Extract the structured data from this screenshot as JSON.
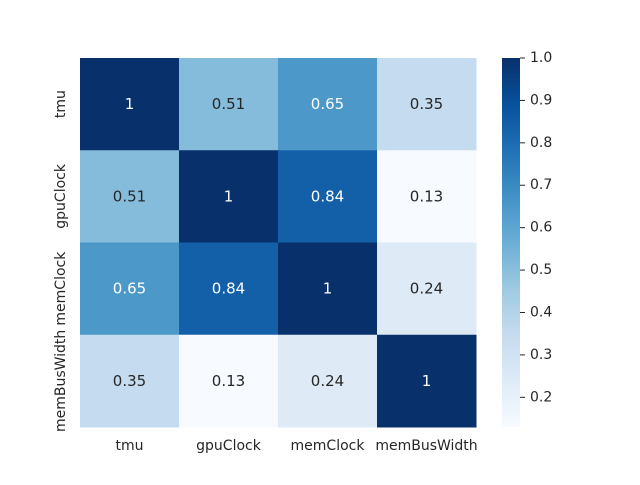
{
  "chart_data": {
    "type": "heatmap",
    "title": "",
    "xlabel": "",
    "ylabel": "",
    "x_categories": [
      "tmu",
      "gpuClock",
      "memClock",
      "memBusWidth"
    ],
    "y_categories": [
      "tmu",
      "gpuClock",
      "memClock",
      "memBusWidth"
    ],
    "values": [
      [
        1,
        0.51,
        0.65,
        0.35
      ],
      [
        0.51,
        1,
        0.84,
        0.13
      ],
      [
        0.65,
        0.84,
        1,
        0.24
      ],
      [
        0.35,
        0.13,
        0.24,
        1
      ]
    ],
    "annotations": [
      [
        "1",
        "0.51",
        "0.65",
        "0.35"
      ],
      [
        "0.51",
        "1",
        "0.84",
        "0.13"
      ],
      [
        "0.65",
        "0.84",
        "1",
        "0.24"
      ],
      [
        "0.35",
        "0.13",
        "0.24",
        "1"
      ]
    ],
    "colormap": "Blues",
    "colorbar": {
      "min": 0.13,
      "max": 1.0,
      "ticks": [
        0.2,
        0.3,
        0.4,
        0.5,
        0.6,
        0.7,
        0.8,
        0.9,
        1.0
      ],
      "tick_labels": [
        "0.2",
        "0.3",
        "0.4",
        "0.5",
        "0.6",
        "0.7",
        "0.8",
        "0.9",
        "1.0"
      ]
    }
  }
}
